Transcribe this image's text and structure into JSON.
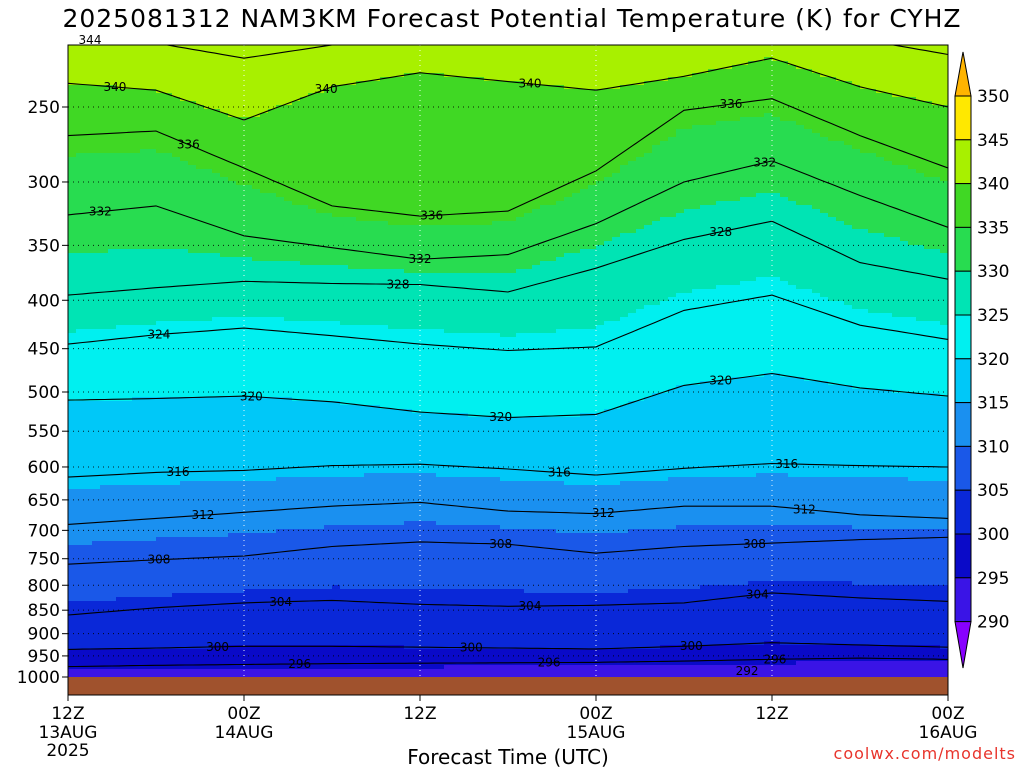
{
  "title": "2025081312 NAM3KM Forecast Potential Temperature (K) for CYHZ",
  "credit": "coolwx.com/modelts",
  "chart_data": {
    "type": "heatmap",
    "title": "2025081312 NAM3KM Forecast Potential Temperature (K) for CYHZ",
    "xlabel": "Forecast Time (UTC)",
    "ylabel": "",
    "xlim_hours": [
      0,
      60
    ],
    "x_ticks": [
      {
        "hour": 0,
        "label": "12Z",
        "sub": "13AUG",
        "sub2": "2025"
      },
      {
        "hour": 12,
        "label": "00Z",
        "sub": "14AUG",
        "sub2": ""
      },
      {
        "hour": 24,
        "label": "12Z",
        "sub": "",
        "sub2": ""
      },
      {
        "hour": 36,
        "label": "00Z",
        "sub": "15AUG",
        "sub2": ""
      },
      {
        "hour": 48,
        "label": "12Z",
        "sub": "",
        "sub2": ""
      },
      {
        "hour": 60,
        "label": "00Z",
        "sub": "16AUG",
        "sub2": ""
      }
    ],
    "y_scale": "log-pressure",
    "ylim_hpa": [
      1000,
      200
    ],
    "y_ticks": [
      250,
      300,
      350,
      400,
      450,
      500,
      550,
      600,
      650,
      700,
      750,
      800,
      850,
      900,
      950,
      1000
    ],
    "grid": "dotted",
    "colorbar": {
      "levels": [
        290,
        295,
        300,
        305,
        310,
        315,
        320,
        325,
        330,
        335,
        340,
        345,
        350
      ],
      "colors": [
        "#8800ff",
        "#3a14e6",
        "#0a0ac8",
        "#0a28d8",
        "#1a58e8",
        "#1a90f0",
        "#00c8f8",
        "#00f0f0",
        "#00e4b4",
        "#28dc50",
        "#40d824",
        "#a8f000",
        "#ffe800",
        "#ffb400"
      ]
    },
    "x_hours": [
      0,
      6,
      12,
      18,
      24,
      30,
      36,
      42,
      48,
      54,
      60
    ],
    "isentropes": [
      {
        "theta": 296,
        "p": [
          975,
          972,
          970,
          968,
          967,
          966,
          965,
          962,
          958,
          955,
          958
        ]
      },
      {
        "theta": 300,
        "p": [
          935,
          932,
          928,
          928,
          930,
          932,
          934,
          928,
          920,
          925,
          930
        ]
      },
      {
        "theta": 304,
        "p": [
          860,
          845,
          835,
          830,
          838,
          842,
          840,
          835,
          815,
          825,
          832
        ]
      },
      {
        "theta": 308,
        "p": [
          760,
          752,
          745,
          728,
          720,
          724,
          740,
          728,
          722,
          716,
          712
        ]
      },
      {
        "theta": 312,
        "p": [
          690,
          680,
          670,
          660,
          654,
          668,
          672,
          660,
          660,
          674,
          680
        ]
      },
      {
        "theta": 316,
        "p": [
          615,
          608,
          605,
          598,
          596,
          603,
          612,
          602,
          595,
          598,
          600
        ]
      },
      {
        "theta": 320,
        "p": [
          510,
          508,
          505,
          512,
          525,
          532,
          528,
          492,
          478,
          495,
          505
        ]
      },
      {
        "theta": 324,
        "p": [
          445,
          435,
          428,
          436,
          445,
          452,
          448,
          410,
          395,
          425,
          440
        ]
      },
      {
        "theta": 328,
        "p": [
          395,
          388,
          382,
          384,
          385,
          392,
          370,
          345,
          330,
          365,
          380
        ]
      },
      {
        "theta": 332,
        "p": [
          325,
          318,
          342,
          352,
          362,
          358,
          332,
          300,
          285,
          310,
          335
        ]
      },
      {
        "theta": 336,
        "p": [
          268,
          265,
          290,
          318,
          326,
          322,
          292,
          252,
          245,
          268,
          290
        ]
      },
      {
        "theta": 340,
        "p": [
          236,
          240,
          258,
          238,
          230,
          235,
          240,
          232,
          222,
          238,
          250
        ]
      },
      {
        "theta": 344,
        "p": [
          212,
          214,
          222,
          215,
          210,
          212,
          215,
          210,
          206,
          212,
          220
        ]
      }
    ],
    "contour_labels": [
      {
        "theta": 344,
        "hour": 1.5
      },
      {
        "theta": 340,
        "hour": 3.2
      },
      {
        "theta": 336,
        "hour": 8.2
      },
      {
        "theta": 340,
        "hour": 17.6
      },
      {
        "theta": 340,
        "hour": 31.5
      },
      {
        "theta": 336,
        "hour": 45.2
      },
      {
        "theta": 332,
        "hour": 2.2
      },
      {
        "theta": 336,
        "hour": 24.8
      },
      {
        "theta": 332,
        "hour": 47.5
      },
      {
        "theta": 332,
        "hour": 24.0
      },
      {
        "theta": 328,
        "hour": 44.5
      },
      {
        "theta": 328,
        "hour": 22.5
      },
      {
        "theta": 324,
        "hour": 6.2
      },
      {
        "theta": 320,
        "hour": 12.5
      },
      {
        "theta": 320,
        "hour": 29.5
      },
      {
        "theta": 320,
        "hour": 44.5
      },
      {
        "theta": 316,
        "hour": 7.5
      },
      {
        "theta": 316,
        "hour": 33.5
      },
      {
        "theta": 316,
        "hour": 49.0
      },
      {
        "theta": 312,
        "hour": 9.2
      },
      {
        "theta": 312,
        "hour": 36.5
      },
      {
        "theta": 312,
        "hour": 50.2
      },
      {
        "theta": 308,
        "hour": 6.2
      },
      {
        "theta": 308,
        "hour": 29.5
      },
      {
        "theta": 308,
        "hour": 46.8
      },
      {
        "theta": 304,
        "hour": 14.5
      },
      {
        "theta": 304,
        "hour": 31.5
      },
      {
        "theta": 304,
        "hour": 47.0
      },
      {
        "theta": 300,
        "hour": 10.2
      },
      {
        "theta": 300,
        "hour": 27.5
      },
      {
        "theta": 300,
        "hour": 42.5
      },
      {
        "theta": 296,
        "hour": 15.8
      },
      {
        "theta": 296,
        "hour": 32.8
      },
      {
        "theta": 296,
        "hour": 48.2
      },
      {
        "theta": 292,
        "hour": 46.3
      }
    ]
  }
}
